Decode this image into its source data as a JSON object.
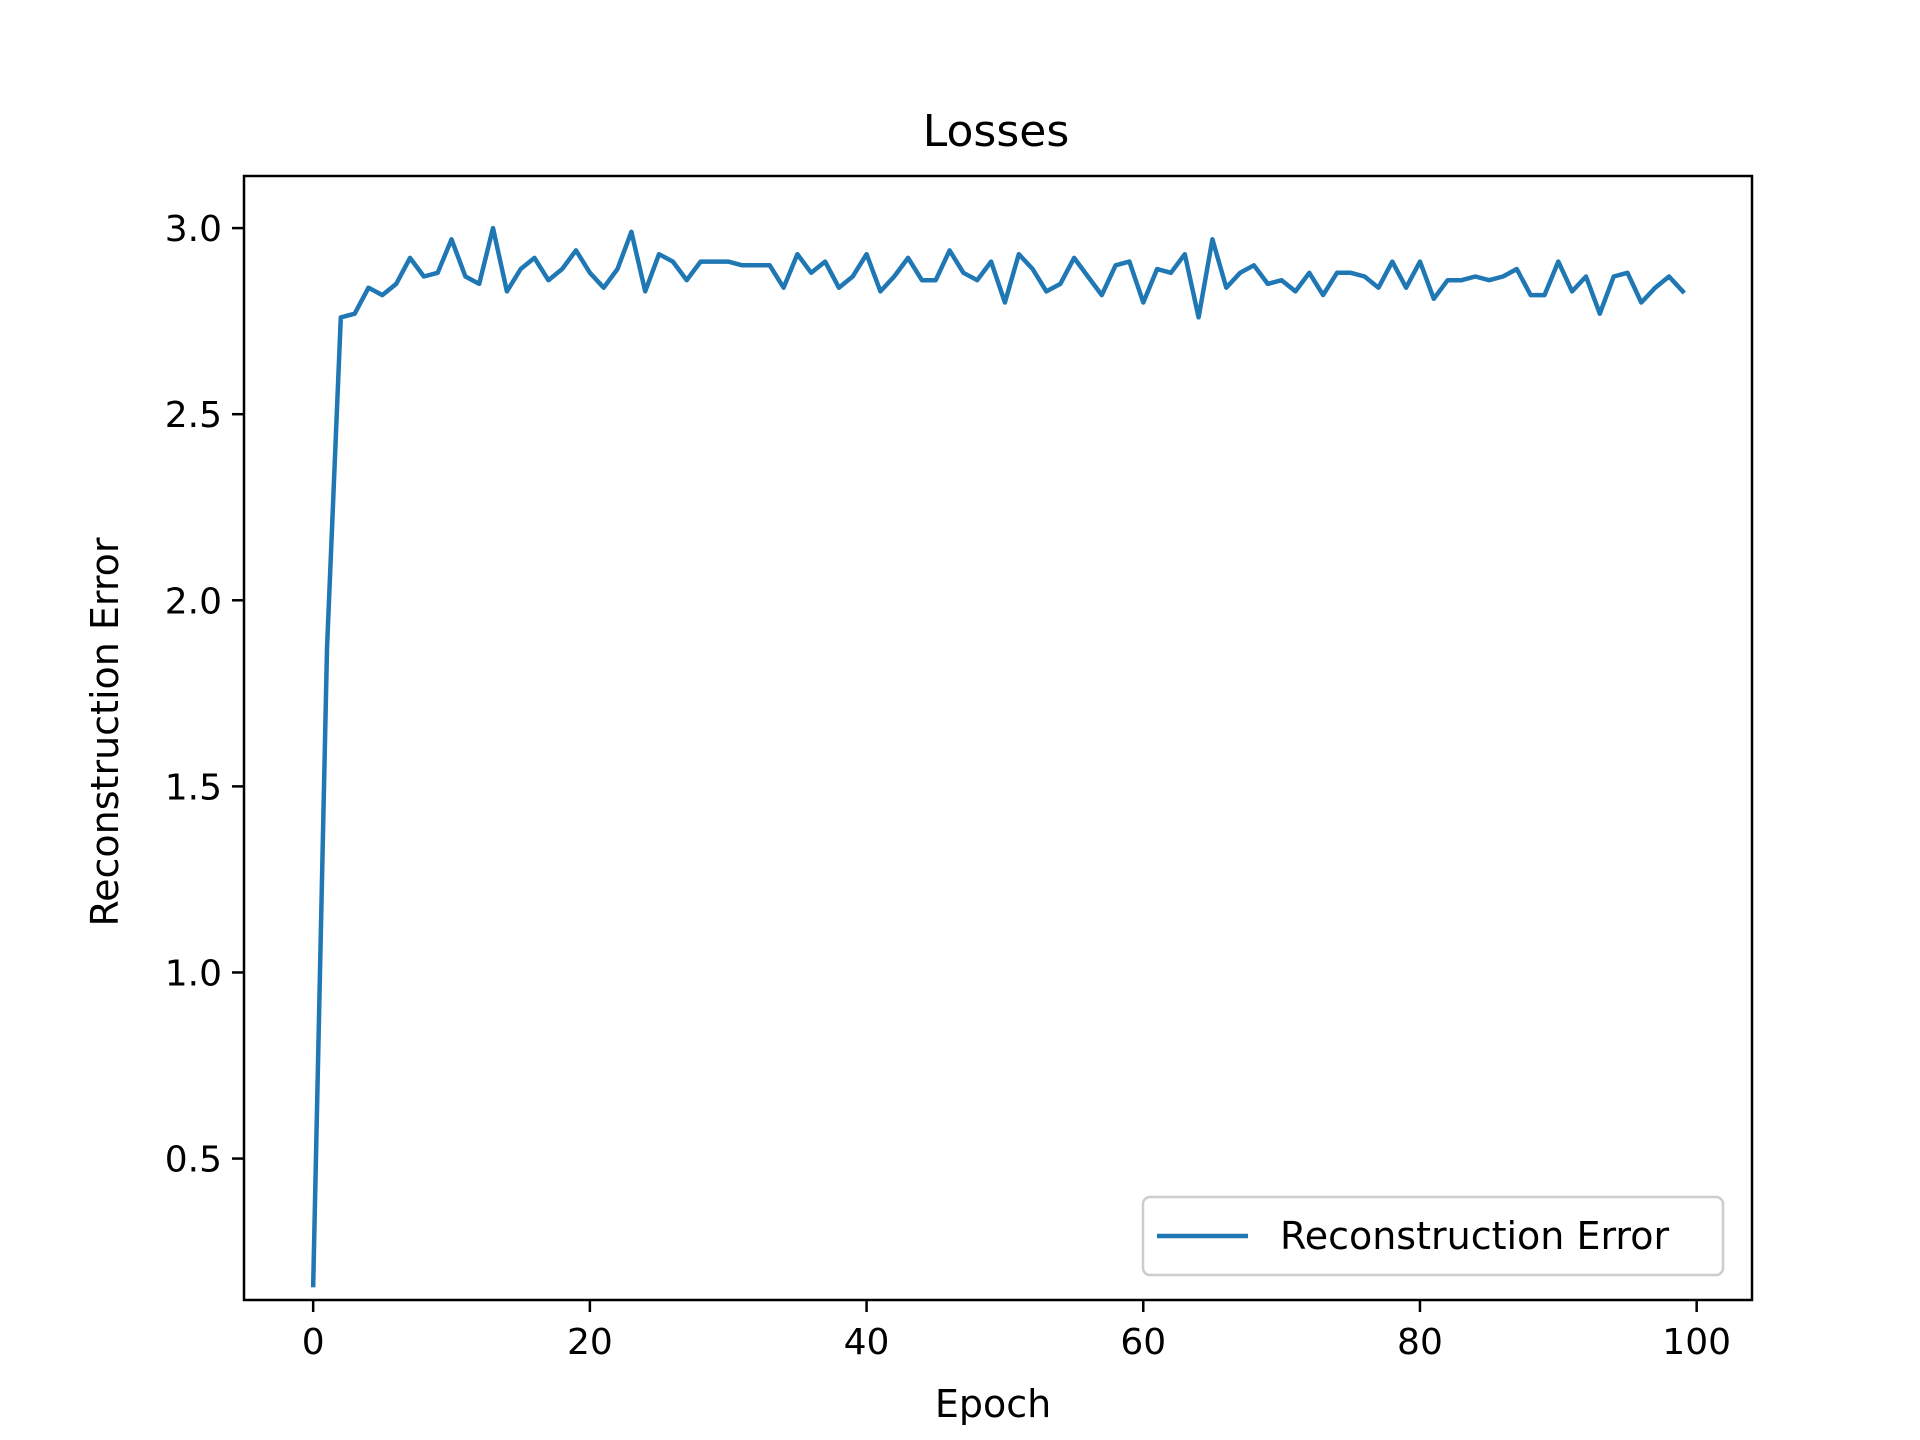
{
  "chart_data": {
    "type": "line",
    "title": "Losses",
    "xlabel": "Epoch",
    "ylabel": "Reconstruction Error",
    "xlim": [
      -5,
      104
    ],
    "ylim": [
      0.12,
      3.14
    ],
    "xticks": [
      0,
      20,
      40,
      60,
      80,
      100
    ],
    "xtick_labels": [
      "0",
      "20",
      "40",
      "60",
      "80",
      "100"
    ],
    "yticks": [
      0.5,
      1.0,
      1.5,
      2.0,
      2.5,
      3.0
    ],
    "ytick_labels": [
      "0.5",
      "1.0",
      "1.5",
      "2.0",
      "2.5",
      "3.0"
    ],
    "grid": false,
    "legend_position": "lower-right",
    "colors": {
      "series": "#1f77b4",
      "axes": "#000000",
      "background": "#ffffff"
    },
    "series": [
      {
        "name": "Reconstruction Error",
        "x": [
          0,
          1,
          2,
          3,
          4,
          5,
          6,
          7,
          8,
          9,
          10,
          11,
          12,
          13,
          14,
          15,
          16,
          17,
          18,
          19,
          20,
          21,
          22,
          23,
          24,
          25,
          26,
          27,
          28,
          29,
          30,
          31,
          32,
          33,
          34,
          35,
          36,
          37,
          38,
          39,
          40,
          41,
          42,
          43,
          44,
          45,
          46,
          47,
          48,
          49,
          50,
          51,
          52,
          53,
          54,
          55,
          56,
          57,
          58,
          59,
          60,
          61,
          62,
          63,
          64,
          65,
          66,
          67,
          68,
          69,
          70,
          71,
          72,
          73,
          74,
          75,
          76,
          77,
          78,
          79,
          80,
          81,
          82,
          83,
          84,
          85,
          86,
          87,
          88,
          89,
          90,
          91,
          92,
          93,
          94,
          95,
          96,
          97,
          98,
          99
        ],
        "values": [
          0.16,
          1.87,
          2.76,
          2.77,
          2.84,
          2.82,
          2.85,
          2.92,
          2.87,
          2.88,
          2.97,
          2.87,
          2.85,
          3.0,
          2.83,
          2.89,
          2.92,
          2.86,
          2.89,
          2.94,
          2.88,
          2.84,
          2.89,
          2.99,
          2.83,
          2.93,
          2.91,
          2.86,
          2.91,
          2.91,
          2.91,
          2.9,
          2.9,
          2.9,
          2.84,
          2.93,
          2.88,
          2.91,
          2.84,
          2.87,
          2.93,
          2.83,
          2.87,
          2.92,
          2.86,
          2.86,
          2.94,
          2.88,
          2.86,
          2.91,
          2.8,
          2.93,
          2.89,
          2.83,
          2.85,
          2.92,
          2.87,
          2.82,
          2.9,
          2.91,
          2.8,
          2.89,
          2.88,
          2.93,
          2.76,
          2.97,
          2.84,
          2.88,
          2.9,
          2.85,
          2.86,
          2.83,
          2.88,
          2.82,
          2.88,
          2.88,
          2.87,
          2.84,
          2.91,
          2.84,
          2.91,
          2.81,
          2.86,
          2.86,
          2.87,
          2.86,
          2.87,
          2.89,
          2.82,
          2.82,
          2.91,
          2.83,
          2.87,
          2.77,
          2.87,
          2.88,
          2.8,
          2.84,
          2.87,
          2.83
        ]
      }
    ]
  }
}
